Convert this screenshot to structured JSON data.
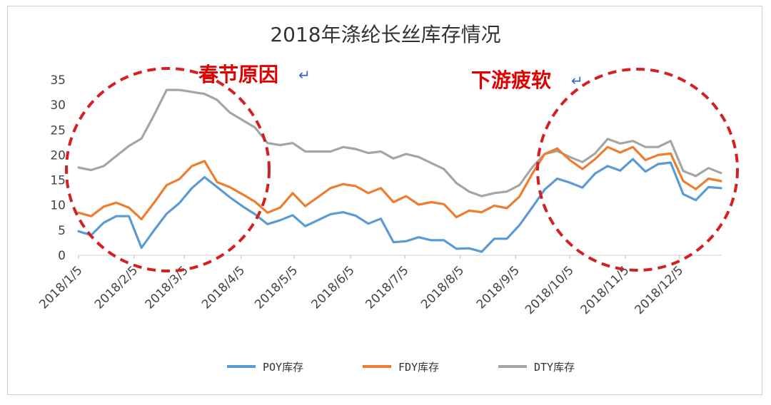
{
  "chart_data": {
    "type": "line",
    "title": "2018年涤纶长丝库存情况",
    "xlabel": "",
    "ylabel": "",
    "ylim": [
      0,
      35
    ],
    "yticks": [
      0,
      5,
      10,
      15,
      20,
      25,
      30,
      35
    ],
    "xlim": [
      1,
      52
    ],
    "xticks": [
      {
        "label": "2018/1/5",
        "x": 1
      },
      {
        "label": "2018/2/5",
        "x": 5.4
      },
      {
        "label": "2018/3/5",
        "x": 9.4
      },
      {
        "label": "2018/4/5",
        "x": 13.9
      },
      {
        "label": "2018/5/5",
        "x": 18.1
      },
      {
        "label": "2018/6/5",
        "x": 22.6
      },
      {
        "label": "2018/7/5",
        "x": 26.9
      },
      {
        "label": "2018/8/5",
        "x": 31.3
      },
      {
        "label": "2018/9/5",
        "x": 35.7
      },
      {
        "label": "2018/10/5",
        "x": 40
      },
      {
        "label": "2018/11/5",
        "x": 44.4
      },
      {
        "label": "2018/12/5",
        "x": 48.7
      }
    ],
    "grid": false,
    "legend_position": "bottom",
    "series": [
      {
        "name": "POY库存",
        "color": "#5b9bd5",
        "values": [
          4.8,
          4.0,
          6.5,
          7.8,
          7.8,
          1.5,
          5.0,
          8.3,
          10.4,
          13.4,
          15.6,
          13.6,
          11.6,
          9.8,
          8.2,
          6.2,
          7.0,
          8.0,
          5.8,
          7.0,
          8.2,
          8.6,
          7.9,
          6.3,
          7.3,
          2.6,
          2.8,
          3.6,
          3.0,
          3.0,
          1.3,
          1.4,
          0.7,
          3.3,
          3.3,
          6.0,
          9.5,
          13.1,
          15.3,
          14.5,
          13.5,
          16.3,
          17.8,
          16.9,
          19.2,
          16.7,
          18.2,
          18.5,
          12.2,
          11.0,
          13.6,
          13.4
        ]
      },
      {
        "name": "FDY库存",
        "color": "#ed7d31",
        "values": [
          8.5,
          7.8,
          9.7,
          10.5,
          9.5,
          7.2,
          10.5,
          14.0,
          15.2,
          17.8,
          18.8,
          14.6,
          13.6,
          12.2,
          10.7,
          8.5,
          9.5,
          12.4,
          9.8,
          11.6,
          13.4,
          14.2,
          13.8,
          12.4,
          13.4,
          10.6,
          11.8,
          10.1,
          10.6,
          10.2,
          7.6,
          8.9,
          8.6,
          9.9,
          9.4,
          11.7,
          16.2,
          20.2,
          21.3,
          19.0,
          17.2,
          19.2,
          21.6,
          20.5,
          21.6,
          19.0,
          20.0,
          20.3,
          14.8,
          13.2,
          15.3,
          14.8
        ]
      },
      {
        "name": "DTY库存",
        "color": "#a5a5a5",
        "values": [
          17.5,
          17.0,
          17.8,
          19.8,
          21.8,
          23.3,
          28.0,
          33.0,
          33.0,
          32.6,
          32.2,
          31.0,
          28.5,
          27.0,
          25.5,
          22.4,
          22.0,
          22.4,
          20.7,
          20.7,
          20.7,
          21.6,
          21.2,
          20.4,
          20.7,
          19.3,
          20.2,
          19.6,
          18.4,
          17.2,
          14.4,
          12.7,
          11.8,
          12.4,
          12.7,
          14.0,
          17.5,
          20.2,
          20.8,
          19.6,
          18.6,
          20.3,
          23.2,
          22.3,
          22.8,
          21.6,
          21.6,
          22.8,
          16.8,
          15.8,
          17.4,
          16.4
        ]
      }
    ],
    "annotations": [
      {
        "text": "春节原因"
      },
      {
        "text": "下游疲软"
      }
    ]
  }
}
